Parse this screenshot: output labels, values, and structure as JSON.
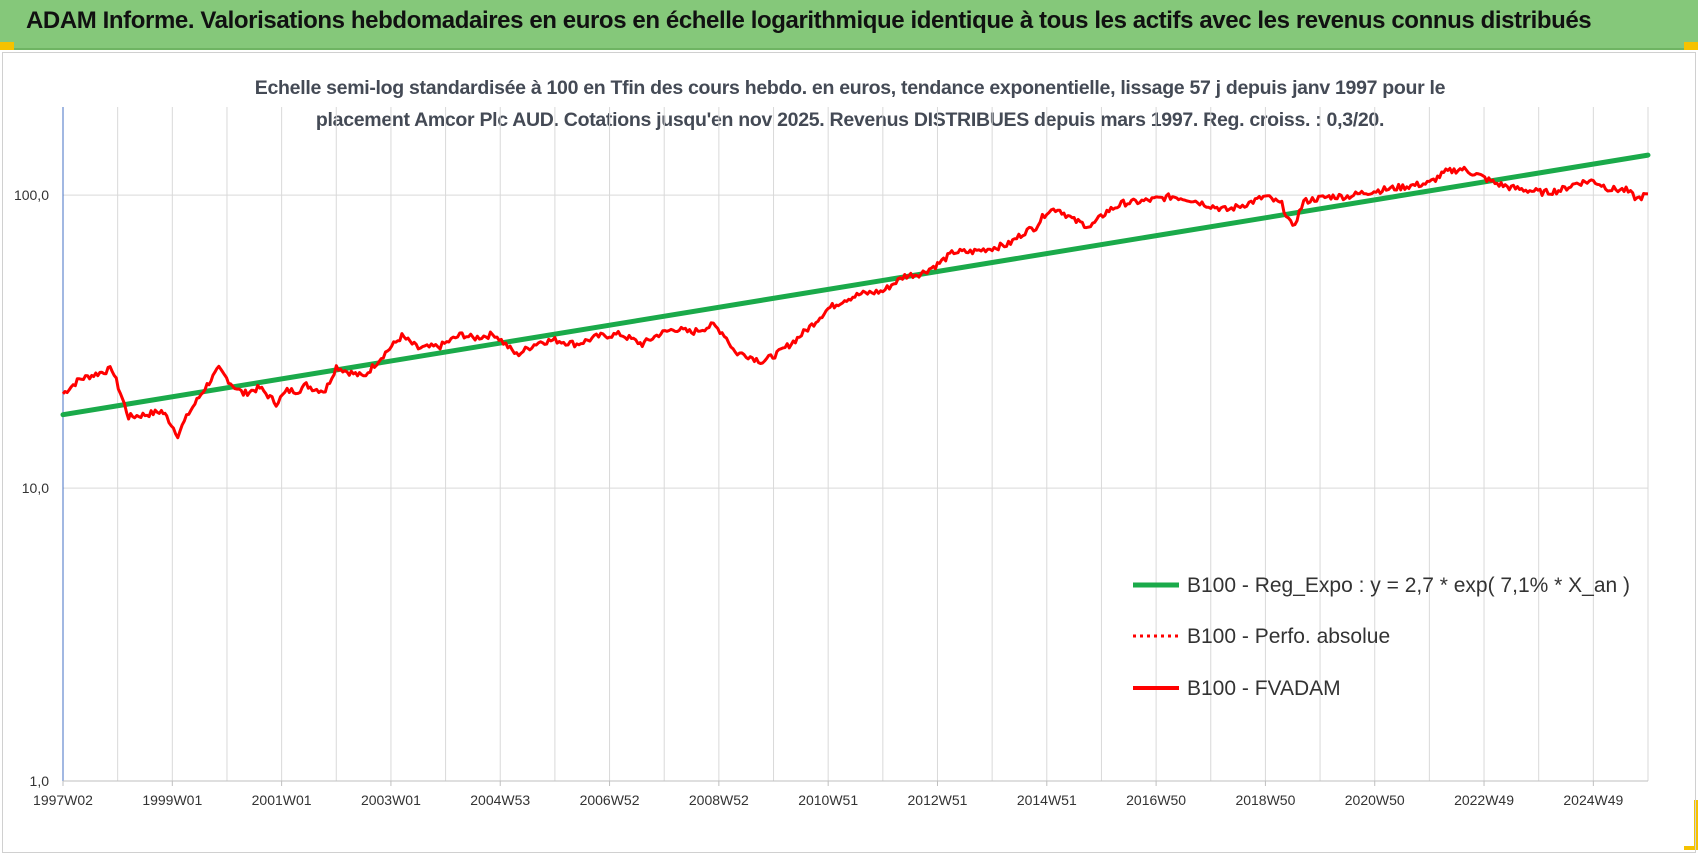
{
  "header": {
    "title": "ADAM Informe. Valorisations hebdomadaires en euros en échelle logarithmique identique à tous les actifs avec les revenus connus distribués"
  },
  "colors": {
    "banner": "#85c87a",
    "regression": "#1aaa4a",
    "fvadam": "#ff0000",
    "perfo": "#ff0000",
    "grid": "#d9d9d9"
  },
  "chart_data": {
    "type": "line",
    "title_line1": "Echelle semi-log standardisée à 100 en Tfin des cours hebdo. en euros, tendance exponentielle, lissage 57 j depuis janv 1997 pour le",
    "title_line2": "placement Amcor Plc AUD. Cotations jusqu'en nov 2025. Revenus DISTRIBUES depuis mars 1997. Reg. croiss. : 0,3/20.",
    "y_scale": "log",
    "ylim": [
      1,
      200
    ],
    "xlim": [
      1997.0,
      2026.0
    ],
    "grid": true,
    "legend_position": "right-middle",
    "y_ticks": [
      {
        "value": 1,
        "label": "1,0"
      },
      {
        "value": 10,
        "label": "10,0"
      },
      {
        "value": 100,
        "label": "100,0"
      }
    ],
    "x_ticks": [
      {
        "value": 1997.0,
        "label": "1997W02"
      },
      {
        "value": 1999.0,
        "label": "1999W01"
      },
      {
        "value": 2001.0,
        "label": "2001W01"
      },
      {
        "value": 2003.0,
        "label": "2003W01"
      },
      {
        "value": 2005.0,
        "label": "2004W53"
      },
      {
        "value": 2007.0,
        "label": "2006W52"
      },
      {
        "value": 2009.0,
        "label": "2008W52"
      },
      {
        "value": 2011.0,
        "label": "2010W51"
      },
      {
        "value": 2013.0,
        "label": "2012W51"
      },
      {
        "value": 2015.0,
        "label": "2014W51"
      },
      {
        "value": 2017.0,
        "label": "2016W50"
      },
      {
        "value": 2019.0,
        "label": "2018W50"
      },
      {
        "value": 2021.0,
        "label": "2020W50"
      },
      {
        "value": 2023.0,
        "label": "2022W49"
      },
      {
        "value": 2025.0,
        "label": "2024W49"
      }
    ],
    "series": [
      {
        "name": "B100 - Reg_Expo : y = 2,7 * exp( 7,1% *  X_an )",
        "style": "solid-thick",
        "x": [
          1997.0,
          2026.0
        ],
        "y": [
          17.8,
          137
        ]
      },
      {
        "name": "B100 - Perfo. absolue",
        "style": "dotted",
        "x": [],
        "y": []
      },
      {
        "name": "B100 - FVADAM",
        "style": "solid",
        "x": [
          1997.0,
          1997.3,
          1997.6,
          1997.9,
          1998.2,
          1998.5,
          1998.8,
          1998.9,
          1999.1,
          1999.3,
          1999.6,
          1999.85,
          2000.1,
          2000.3,
          2000.6,
          2000.9,
          2001.1,
          2001.3,
          2001.45,
          2001.6,
          2001.8,
          2002.0,
          2002.2,
          2002.5,
          2002.9,
          2003.2,
          2003.5,
          2003.9,
          2004.1,
          2004.3,
          2004.5,
          2004.9,
          2005.3,
          2005.7,
          2006.0,
          2006.4,
          2006.8,
          2007.2,
          2007.6,
          2007.9,
          2008.2,
          2008.5,
          2008.9,
          2009.1,
          2009.3,
          2009.5,
          2009.8,
          2010.1,
          2010.4,
          2010.7,
          2011.0,
          2011.3,
          2011.6,
          2012.0,
          2012.2,
          2012.4,
          2012.7,
          2013.0,
          2013.3,
          2013.6,
          2014.0,
          2014.3,
          2014.6,
          2014.8,
          2015.0,
          2015.2,
          2015.5,
          2015.8,
          2016.1,
          2016.4,
          2016.7,
          2017.0,
          2017.3,
          2017.6,
          2018.0,
          2018.3,
          2018.7,
          2019.0,
          2019.3,
          2019.5,
          2019.7,
          2019.9,
          2020.2,
          2020.5,
          2020.8,
          2021.1,
          2021.4,
          2021.7,
          2022.0,
          2022.3,
          2022.6,
          2022.9,
          2023.2,
          2023.5,
          2023.8,
          2024.1,
          2024.4,
          2024.7,
          2025.0,
          2025.3,
          2025.6,
          2025.8,
          2026.0
        ],
        "y": [
          21,
          23.5,
          24.5,
          25.5,
          17.5,
          17.8,
          18.3,
          17.5,
          15.2,
          18,
          22,
          25.5,
          22.5,
          21,
          22,
          19.5,
          21.5,
          21.5,
          22.5,
          21.8,
          21.5,
          26,
          25,
          24,
          29,
          33,
          30,
          30.5,
          32,
          33.5,
          32.5,
          33.5,
          28.5,
          31.5,
          32,
          31,
          33,
          33.5,
          31,
          33.5,
          35,
          34,
          36,
          33.5,
          29,
          28.5,
          27,
          29,
          32,
          36,
          41,
          44,
          46,
          47,
          50,
          53,
          54,
          58,
          64,
          64,
          66,
          68,
          75,
          78,
          88,
          90,
          82,
          78,
          88,
          94,
          95,
          97,
          99,
          97,
          92,
          89,
          94,
          99,
          93,
          77,
          95,
          97,
          99,
          99,
          102,
          104,
          106,
          108,
          110,
          120,
          123,
          117,
          110,
          106,
          104,
          102,
          104,
          110,
          112,
          105,
          104,
          97,
          101
        ]
      }
    ]
  }
}
